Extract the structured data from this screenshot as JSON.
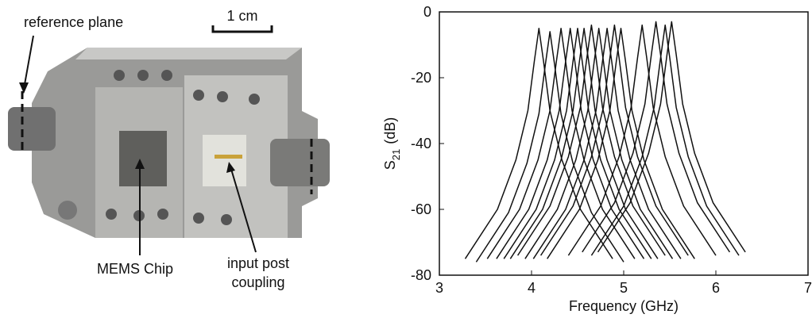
{
  "photo": {
    "reference_label": "reference plane",
    "scale_label": "1 cm",
    "chip_label": "MEMS Chip",
    "coupling_label_1": "input post",
    "coupling_label_2": "coupling"
  },
  "chart_data": {
    "type": "line",
    "xlabel": "Frequency (GHz)",
    "ylabel": "S",
    "ylabel_sub": "21",
    "ylabel_unit": "(dB)",
    "xlim": [
      3,
      7
    ],
    "ylim": [
      -80,
      0
    ],
    "xticks": [
      3,
      4,
      5,
      6,
      7
    ],
    "yticks": [
      -80,
      -60,
      -40,
      -20,
      0
    ],
    "color": "#111111",
    "series": [
      {
        "x": [
          3.28,
          3.63,
          3.83,
          3.96,
          4.03,
          4.08,
          4.13,
          4.2,
          4.33,
          4.53,
          4.88
        ],
        "values": [
          -75,
          -60,
          -45,
          -30,
          -15,
          -5,
          -15,
          -30,
          -45,
          -60,
          -75
        ]
      },
      {
        "x": [
          3.4,
          3.75,
          3.95,
          4.08,
          4.15,
          4.2,
          4.25,
          4.32,
          4.45,
          4.65,
          5
        ],
        "values": [
          -76,
          -61,
          -46,
          -31,
          -16,
          -6,
          -16,
          -31,
          -46,
          -61,
          -76
        ]
      },
      {
        "x": [
          3.52,
          3.87,
          4.07,
          4.2,
          4.27,
          4.32,
          4.37,
          4.44,
          4.57,
          4.77,
          5.12
        ],
        "values": [
          -75,
          -60,
          -45,
          -30,
          -15,
          -5,
          -15,
          -30,
          -45,
          -60,
          -75
        ]
      },
      {
        "x": [
          3.62,
          3.97,
          4.17,
          4.3,
          4.37,
          4.42,
          4.47,
          4.54,
          4.67,
          4.87,
          5.22
        ],
        "values": [
          -75,
          -60,
          -45,
          -30,
          -15,
          -5,
          -15,
          -30,
          -45,
          -60,
          -75
        ]
      },
      {
        "x": [
          3.7,
          4.05,
          4.25,
          4.38,
          4.45,
          4.5,
          4.55,
          4.62,
          4.75,
          4.95,
          5.3
        ],
        "values": [
          -75,
          -60,
          -45,
          -30,
          -15,
          -5,
          -15,
          -30,
          -45,
          -60,
          -75
        ]
      },
      {
        "x": [
          3.77,
          4.12,
          4.32,
          4.45,
          4.52,
          4.57,
          4.62,
          4.69,
          4.82,
          5.02,
          5.37
        ],
        "values": [
          -75,
          -60,
          -45,
          -30,
          -15,
          -5,
          -15,
          -30,
          -45,
          -60,
          -75
        ]
      },
      {
        "x": [
          3.85,
          4.2,
          4.4,
          4.53,
          4.6,
          4.65,
          4.7,
          4.77,
          4.9,
          5.1,
          5.45
        ],
        "values": [
          -74,
          -59,
          -44,
          -29,
          -14,
          -4,
          -14,
          -29,
          -44,
          -59,
          -74
        ]
      },
      {
        "x": [
          3.93,
          4.28,
          4.48,
          4.61,
          4.68,
          4.73,
          4.78,
          4.85,
          4.98,
          5.18,
          5.53
        ],
        "values": [
          -75,
          -60,
          -45,
          -30,
          -15,
          -5,
          -15,
          -30,
          -45,
          -60,
          -75
        ]
      },
      {
        "x": [
          4.02,
          4.37,
          4.57,
          4.7,
          4.77,
          4.82,
          4.87,
          4.94,
          5.07,
          5.27,
          5.62
        ],
        "values": [
          -75,
          -60,
          -45,
          -30,
          -15,
          -5,
          -15,
          -30,
          -45,
          -60,
          -75
        ]
      },
      {
        "x": [
          4.1,
          4.45,
          4.65,
          4.78,
          4.85,
          4.9,
          4.95,
          5.02,
          5.15,
          5.35,
          5.7
        ],
        "values": [
          -74,
          -59,
          -44,
          -29,
          -14,
          -4,
          -14,
          -29,
          -44,
          -59,
          -74
        ]
      },
      {
        "x": [
          4.17,
          4.52,
          4.72,
          4.85,
          4.92,
          4.97,
          5.02,
          5.09,
          5.22,
          5.42,
          5.77
        ],
        "values": [
          -75,
          -60,
          -45,
          -30,
          -15,
          -5,
          -15,
          -30,
          -45,
          -60,
          -75
        ]
      },
      {
        "x": [
          4.4,
          4.75,
          4.95,
          5.08,
          5.15,
          5.2,
          5.25,
          5.32,
          5.45,
          5.65,
          6
        ],
        "values": [
          -74,
          -59,
          -44,
          -29,
          -14,
          -4,
          -14,
          -29,
          -44,
          -59,
          -74
        ]
      },
      {
        "x": [
          4.55,
          4.9,
          5.1,
          5.23,
          5.3,
          5.35,
          5.4,
          5.47,
          5.6,
          5.8,
          6.15
        ],
        "values": [
          -73,
          -58,
          -43,
          -28,
          -13,
          -3,
          -13,
          -28,
          -43,
          -58,
          -73
        ]
      },
      {
        "x": [
          4.65,
          5,
          5.2,
          5.33,
          5.4,
          5.45,
          5.5,
          5.57,
          5.7,
          5.9,
          6.25
        ],
        "values": [
          -74,
          -59,
          -44,
          -29,
          -14,
          -4,
          -14,
          -29,
          -44,
          -59,
          -74
        ]
      },
      {
        "x": [
          4.72,
          5.07,
          5.27,
          5.4,
          5.47,
          5.52,
          5.57,
          5.64,
          5.77,
          5.97,
          6.32
        ],
        "values": [
          -73,
          -58,
          -43,
          -28,
          -13,
          -3,
          -13,
          -28,
          -43,
          -58,
          -73
        ]
      }
    ]
  }
}
